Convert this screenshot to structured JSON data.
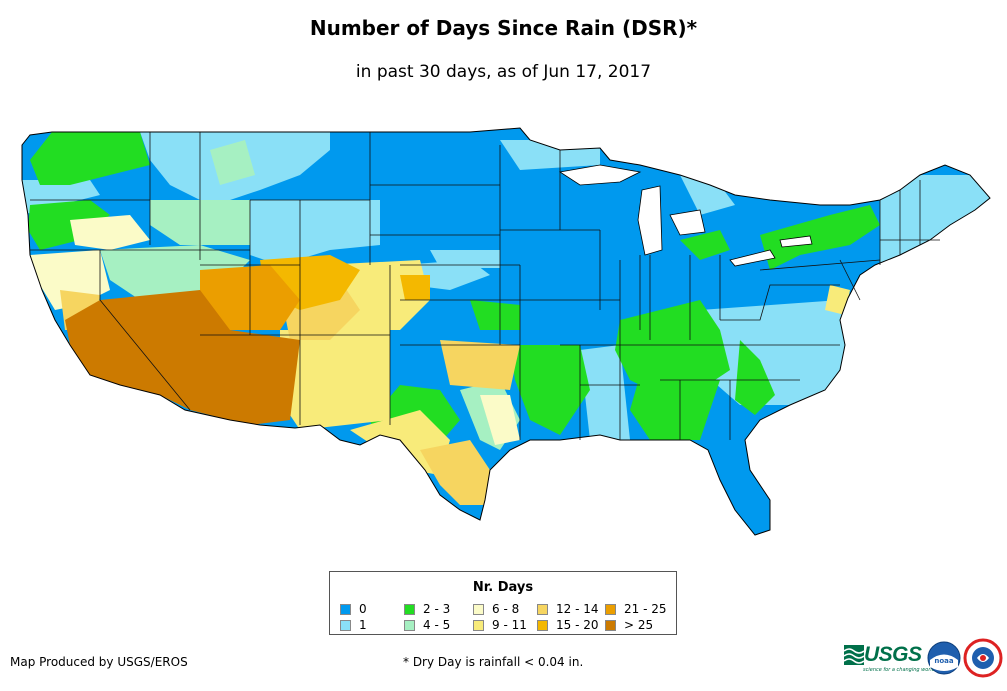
{
  "title": "Number of Days Since Rain (DSR)*",
  "subtitle": "in past 30 days, as of Jun 17, 2017",
  "legend": {
    "title": "Nr. Days",
    "items": [
      {
        "label": "0",
        "color": "#0099ee"
      },
      {
        "label": "1",
        "color": "#8ae0f7"
      },
      {
        "label": "2 - 3",
        "color": "#22dd22"
      },
      {
        "label": "4 - 5",
        "color": "#a6f0c2"
      },
      {
        "label": "6 - 8",
        "color": "#fbfbc8"
      },
      {
        "label": "9 - 11",
        "color": "#f8eb7a"
      },
      {
        "label": "12 - 14",
        "color": "#f6d560"
      },
      {
        "label": "15 - 20",
        "color": "#f4b800"
      },
      {
        "label": "21 - 25",
        "color": "#eb9e00"
      },
      {
        "label": "> 25",
        "color": "#cc7a00"
      }
    ]
  },
  "footer": {
    "producer": "Map Produced by USGS/EROS",
    "note": "* Dry Day is rainfall < 0.04 in."
  },
  "logos": {
    "usgs_text": "USGS",
    "usgs_tagline": "science for a changing world",
    "noaa_text": "noaa"
  }
}
